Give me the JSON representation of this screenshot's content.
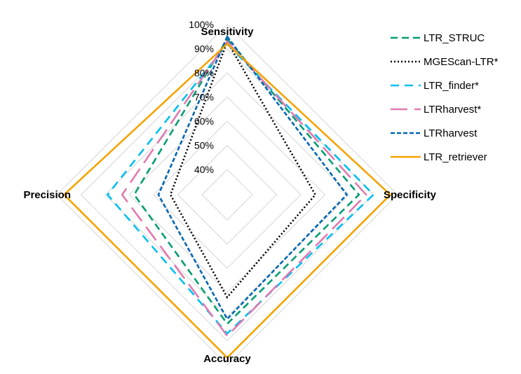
{
  "chart_data": {
    "type": "radar",
    "axes": [
      "Sensitivity",
      "Specificity",
      "Accuracy",
      "Precision"
    ],
    "r_ticks": [
      "40%",
      "50%",
      "60%",
      "70%",
      "80%",
      "90%",
      "100%"
    ],
    "rlim": [
      40,
      100
    ],
    "grid": true,
    "legend_position": "top-right",
    "series": [
      {
        "name": "LTR_STRUC",
        "color": "#009E73",
        "dash": "10,6",
        "values": [
          94,
          84,
          83,
          68
        ]
      },
      {
        "name": "MGEScan-LTR*",
        "color": "#000000",
        "dash": "2,3",
        "values": [
          93,
          66,
          72,
          53
        ]
      },
      {
        "name": "LTR_finder*",
        "color": "#00BFEF",
        "dash": "12,8",
        "values": [
          92,
          90,
          87,
          79
        ]
      },
      {
        "name": "LTRharvest*",
        "color": "#E07BB0",
        "dash": "24,10",
        "values": [
          93,
          87,
          88,
          73
        ]
      },
      {
        "name": "LTRharvest",
        "color": "#0066B2",
        "dash": "6,3",
        "values": [
          95,
          79,
          81,
          58
        ]
      },
      {
        "name": "LTR_retriever",
        "color": "#F5A300",
        "dash": "",
        "values": [
          92,
          97,
          97,
          97
        ]
      }
    ]
  }
}
